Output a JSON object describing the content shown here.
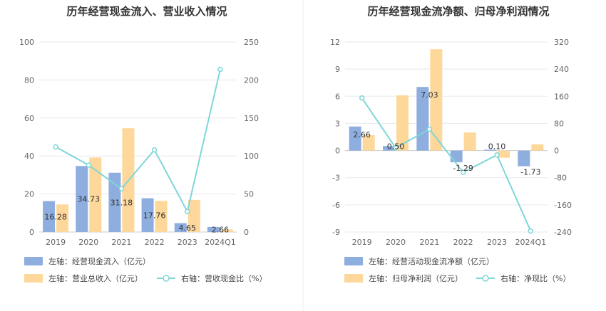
{
  "colors": {
    "bar1": "#8eaedf",
    "bar2": "#fdd89a",
    "line": "#7fd6d9",
    "grid": "#e8e8f0",
    "axis": "#cccccc",
    "divider": "#eeeeee"
  },
  "chart_data": [
    {
      "type": "bar",
      "title": "历年经营现金流入、营业收入情况",
      "categories": [
        "2019",
        "2020",
        "2021",
        "2022",
        "2023",
        "2024Q1"
      ],
      "left_axis": {
        "ticks": [
          "0",
          "20",
          "40",
          "60",
          "80",
          "100"
        ],
        "ylim": [
          0,
          100
        ]
      },
      "right_axis": {
        "ticks": [
          "0",
          "50",
          "100",
          "150",
          "200",
          "250"
        ],
        "ylim": [
          0,
          250
        ]
      },
      "series": [
        {
          "name": "左轴：经营现金流入（亿元）",
          "type": "bar",
          "axis": "left",
          "values": [
            16.28,
            34.73,
            31.18,
            17.76,
            4.65,
            2.66
          ],
          "labels": [
            "16.28",
            "34.73",
            "31.18",
            "17.76",
            "4.65",
            "2.66"
          ]
        },
        {
          "name": "左轴：营业总收入（亿元）",
          "type": "bar",
          "axis": "left",
          "values": [
            14.5,
            39.2,
            54.6,
            16.4,
            16.9,
            1.3
          ]
        },
        {
          "name": "右轴：营收现金比（%）",
          "type": "line",
          "axis": "right",
          "values": [
            112,
            88,
            57,
            108,
            27,
            214
          ]
        }
      ]
    },
    {
      "type": "bar",
      "title": "历年经营现金流净额、归母净利润情况",
      "categories": [
        "2019",
        "2020",
        "2021",
        "2022",
        "2023",
        "2024Q1"
      ],
      "left_axis": {
        "ticks": [
          "-9",
          "-6",
          "-3",
          "0",
          "3",
          "6",
          "9",
          "12"
        ],
        "ylim": [
          -9,
          12
        ]
      },
      "right_axis": {
        "ticks": [
          "-240",
          "-160",
          "-80",
          "0",
          "80",
          "160",
          "240",
          "320"
        ],
        "ylim": [
          -240,
          320
        ]
      },
      "series": [
        {
          "name": "左轴：经营活动现金流净额（亿元）",
          "type": "bar",
          "axis": "left",
          "values": [
            2.66,
            0.5,
            7.03,
            -1.29,
            0.1,
            -1.73
          ],
          "labels": [
            "2.66",
            "0.50",
            "7.03",
            "-1.29",
            "0.10",
            "-1.73"
          ]
        },
        {
          "name": "左轴：归母净利润（亿元）",
          "type": "bar",
          "axis": "left",
          "values": [
            1.7,
            6.1,
            11.2,
            2.0,
            -0.8,
            0.7
          ]
        },
        {
          "name": "右轴：净现比（%）",
          "type": "line",
          "axis": "right",
          "values": [
            155,
            8,
            63,
            -64,
            -13,
            -237
          ]
        }
      ]
    }
  ]
}
